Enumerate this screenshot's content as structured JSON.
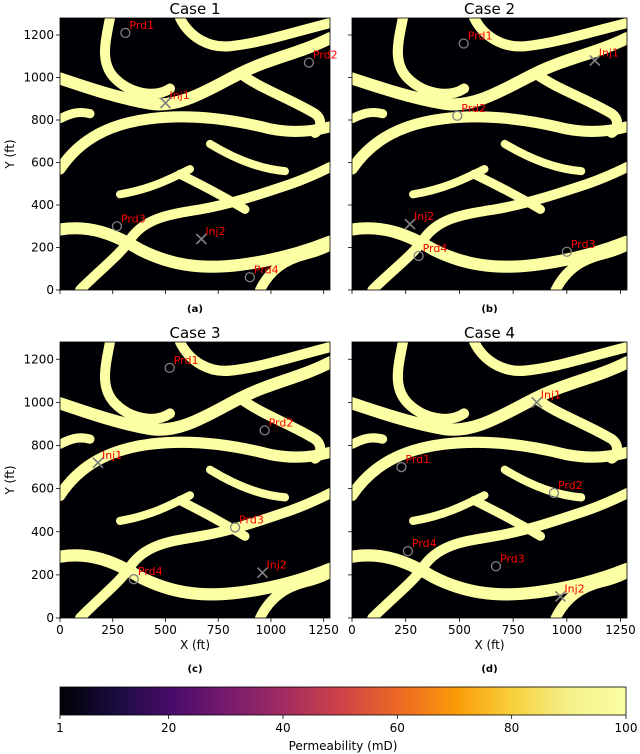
{
  "chart_data": [
    {
      "type": "heatmap",
      "title": "Case 1",
      "subfigure_label": "(a)",
      "xlabel": "",
      "ylabel": "Y (ft)",
      "xlim": [
        0,
        1280
      ],
      "ylim": [
        0,
        1280
      ],
      "xticks": [],
      "yticks": [
        "0",
        "200",
        "400",
        "600",
        "800",
        "1000",
        "1200"
      ],
      "wells": [
        {
          "name": "Prd1",
          "kind": "producer",
          "x": 310,
          "y": 1210
        },
        {
          "name": "Prd2",
          "kind": "producer",
          "x": 1180,
          "y": 1070
        },
        {
          "name": "Inj1",
          "kind": "injector",
          "x": 500,
          "y": 880
        },
        {
          "name": "Prd3",
          "kind": "producer",
          "x": 270,
          "y": 300
        },
        {
          "name": "Inj2",
          "kind": "injector",
          "x": 670,
          "y": 240
        },
        {
          "name": "Prd4",
          "kind": "producer",
          "x": 900,
          "y": 60
        }
      ]
    },
    {
      "type": "heatmap",
      "title": "Case 2",
      "subfigure_label": "(b)",
      "xlabel": "",
      "ylabel": "",
      "xlim": [
        0,
        1280
      ],
      "ylim": [
        0,
        1280
      ],
      "xticks": [],
      "yticks": [],
      "wells": [
        {
          "name": "Prd1",
          "kind": "producer",
          "x": 520,
          "y": 1160
        },
        {
          "name": "Inj1",
          "kind": "injector",
          "x": 1130,
          "y": 1080
        },
        {
          "name": "Prd2",
          "kind": "producer",
          "x": 490,
          "y": 820
        },
        {
          "name": "Inj2",
          "kind": "injector",
          "x": 270,
          "y": 310
        },
        {
          "name": "Prd4",
          "kind": "producer",
          "x": 310,
          "y": 160
        },
        {
          "name": "Prd3",
          "kind": "producer",
          "x": 1000,
          "y": 180
        }
      ]
    },
    {
      "type": "heatmap",
      "title": "Case 3",
      "subfigure_label": "(c)",
      "xlabel": "X (ft)",
      "ylabel": "Y (ft)",
      "xlim": [
        0,
        1280
      ],
      "ylim": [
        0,
        1280
      ],
      "xticks": [
        "0",
        "250",
        "500",
        "750",
        "1000",
        "1250"
      ],
      "yticks": [
        "0",
        "200",
        "400",
        "600",
        "800",
        "1000",
        "1200"
      ],
      "wells": [
        {
          "name": "Prd1",
          "kind": "producer",
          "x": 520,
          "y": 1160
        },
        {
          "name": "Prd2",
          "kind": "producer",
          "x": 970,
          "y": 870
        },
        {
          "name": "Inj1",
          "kind": "injector",
          "x": 180,
          "y": 720
        },
        {
          "name": "Prd3",
          "kind": "producer",
          "x": 830,
          "y": 420
        },
        {
          "name": "Prd4",
          "kind": "producer",
          "x": 350,
          "y": 180
        },
        {
          "name": "Inj2",
          "kind": "injector",
          "x": 960,
          "y": 210
        }
      ]
    },
    {
      "type": "heatmap",
      "title": "Case 4",
      "subfigure_label": "(d)",
      "xlabel": "X (ft)",
      "ylabel": "",
      "xlim": [
        0,
        1280
      ],
      "ylim": [
        0,
        1280
      ],
      "xticks": [
        "0",
        "250",
        "500",
        "750",
        "1000",
        "1250"
      ],
      "yticks": [],
      "wells": [
        {
          "name": "Inj1",
          "kind": "injector",
          "x": 860,
          "y": 1000
        },
        {
          "name": "Prd1",
          "kind": "producer",
          "x": 230,
          "y": 700
        },
        {
          "name": "Prd2",
          "kind": "producer",
          "x": 940,
          "y": 580
        },
        {
          "name": "Prd4",
          "kind": "producer",
          "x": 260,
          "y": 310
        },
        {
          "name": "Prd3",
          "kind": "producer",
          "x": 670,
          "y": 240
        },
        {
          "name": "Inj2",
          "kind": "injector",
          "x": 970,
          "y": 100
        }
      ]
    }
  ],
  "colorbar": {
    "label": "Permeability (mD)",
    "min": 1,
    "max": 100,
    "ticks": [
      "1",
      "20",
      "40",
      "60",
      "80",
      "100"
    ],
    "tick_values": [
      1,
      20,
      40,
      60,
      80,
      100
    ],
    "colormap": "inferno"
  },
  "colors": {
    "low_perm": "#000004",
    "high_perm": "#fcffa4",
    "well_marker": "#808080",
    "well_label": "#ff0000"
  }
}
